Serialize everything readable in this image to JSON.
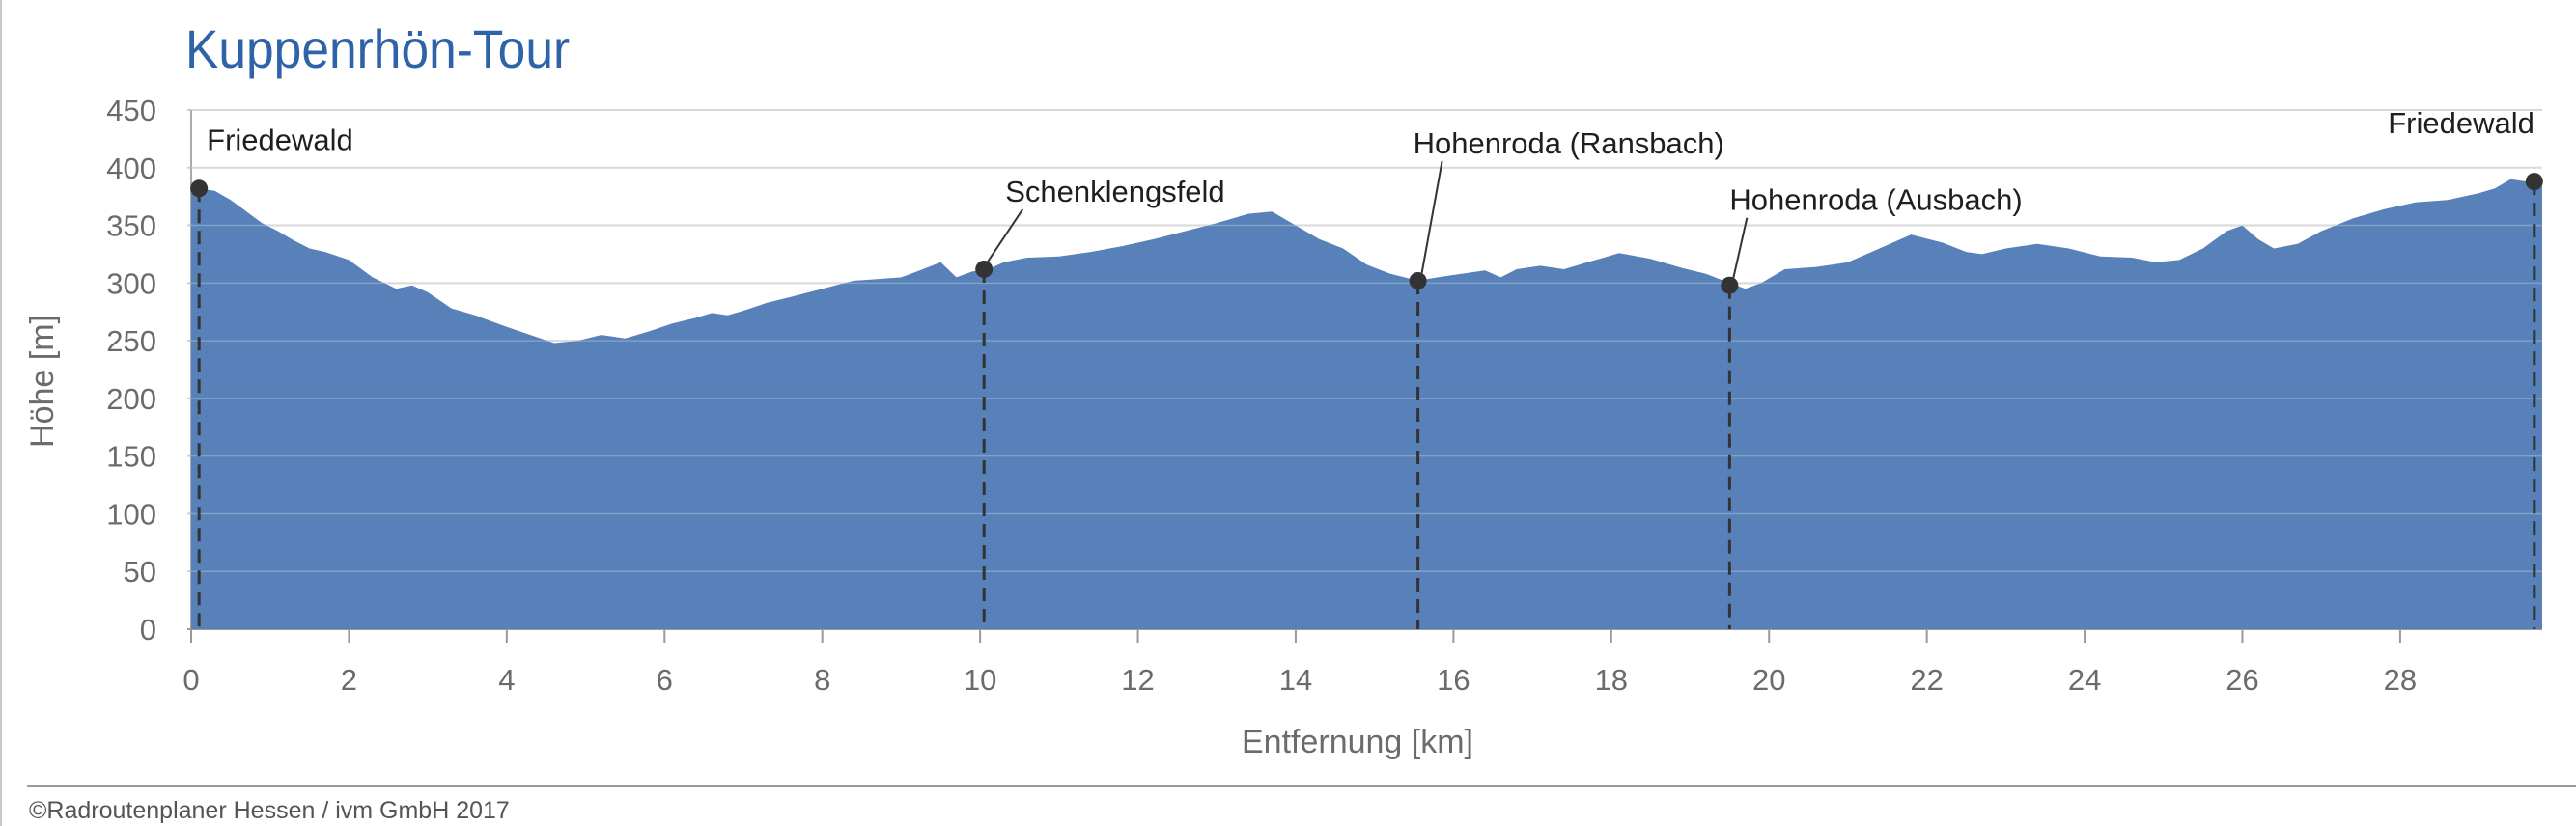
{
  "title": "Kuppenrhön-Tour",
  "credit": "©Radroutenplaner Hessen / ivm GmbH 2017",
  "colors": {
    "area": "#5781b8",
    "title": "#2e63a8",
    "marker": "#333333"
  },
  "chart_data": {
    "type": "area",
    "title": "Kuppenrhön-Tour",
    "xlabel": "Entfernung [km]",
    "ylabel": "Höhe [m]",
    "xlim": [
      0,
      29.8
    ],
    "ylim": [
      0,
      450
    ],
    "x_ticks": [
      "0",
      "2",
      "4",
      "6",
      "8",
      "10",
      "12",
      "14",
      "16",
      "18",
      "20",
      "22",
      "24",
      "26",
      "28"
    ],
    "y_ticks": [
      "0",
      "50",
      "100",
      "150",
      "200",
      "250",
      "300",
      "350",
      "400",
      "450"
    ],
    "grid": "horizontal",
    "series": [
      {
        "x": [
          0,
          0.1,
          0.3,
          0.5,
          0.7,
          0.9,
          1.1,
          1.3,
          1.5,
          1.7,
          2.0,
          2.3,
          2.6,
          2.8,
          3.0,
          3.3,
          3.6,
          4.0,
          4.3,
          4.6,
          4.9,
          5.2,
          5.5,
          5.8,
          6.1,
          6.4,
          6.6,
          6.8,
          7.0,
          7.3,
          7.6,
          8.0,
          8.4,
          8.8,
          9.0,
          9.2,
          9.5,
          9.7,
          9.9,
          10.1,
          10.3,
          10.6,
          11.0,
          11.4,
          11.8,
          12.2,
          12.6,
          13.0,
          13.4,
          13.7,
          14.0,
          14.3,
          14.6,
          14.9,
          15.2,
          15.55,
          15.8,
          16.1,
          16.4,
          16.6,
          16.8,
          17.1,
          17.4,
          17.7,
          18.1,
          18.5,
          18.9,
          19.2,
          19.5,
          19.7,
          19.9,
          20.2,
          20.6,
          21.0,
          21.4,
          21.8,
          22.2,
          22.5,
          22.7,
          23.0,
          23.4,
          23.8,
          24.2,
          24.6,
          24.9,
          25.2,
          25.5,
          25.8,
          26.0,
          26.2,
          26.4,
          26.7,
          27.0,
          27.4,
          27.8,
          28.2,
          28.6,
          29.0,
          29.2,
          29.4,
          29.6,
          29.8
        ],
        "y": [
          378,
          382,
          380,
          372,
          362,
          352,
          345,
          337,
          330,
          327,
          320,
          305,
          295,
          298,
          292,
          278,
          272,
          262,
          255,
          248,
          250,
          255,
          252,
          258,
          265,
          270,
          274,
          272,
          276,
          283,
          288,
          295,
          302,
          304,
          305,
          310,
          318,
          305,
          310,
          312,
          318,
          322,
          323,
          327,
          332,
          338,
          345,
          352,
          360,
          362,
          350,
          338,
          330,
          316,
          308,
          302,
          305,
          308,
          311,
          305,
          312,
          315,
          312,
          318,
          326,
          321,
          313,
          308,
          300,
          295,
          300,
          312,
          314,
          318,
          330,
          342,
          335,
          327,
          325,
          330,
          334,
          330,
          323,
          322,
          318,
          320,
          330,
          345,
          350,
          338,
          330,
          334,
          345,
          356,
          364,
          370,
          372,
          378,
          382,
          390,
          388,
          384
        ]
      }
    ],
    "annotations": [
      {
        "label": "Friedewald",
        "x": 0.1,
        "y": 382
      },
      {
        "label": "Schenklengsfeld",
        "x": 10.05,
        "y": 312
      },
      {
        "label": "Hohenroda (Ransbach)",
        "x": 15.55,
        "y": 302
      },
      {
        "label": "Hohenroda (Ausbach)",
        "x": 19.5,
        "y": 298
      },
      {
        "label": "Friedewald",
        "x": 29.7,
        "y": 388
      }
    ]
  }
}
